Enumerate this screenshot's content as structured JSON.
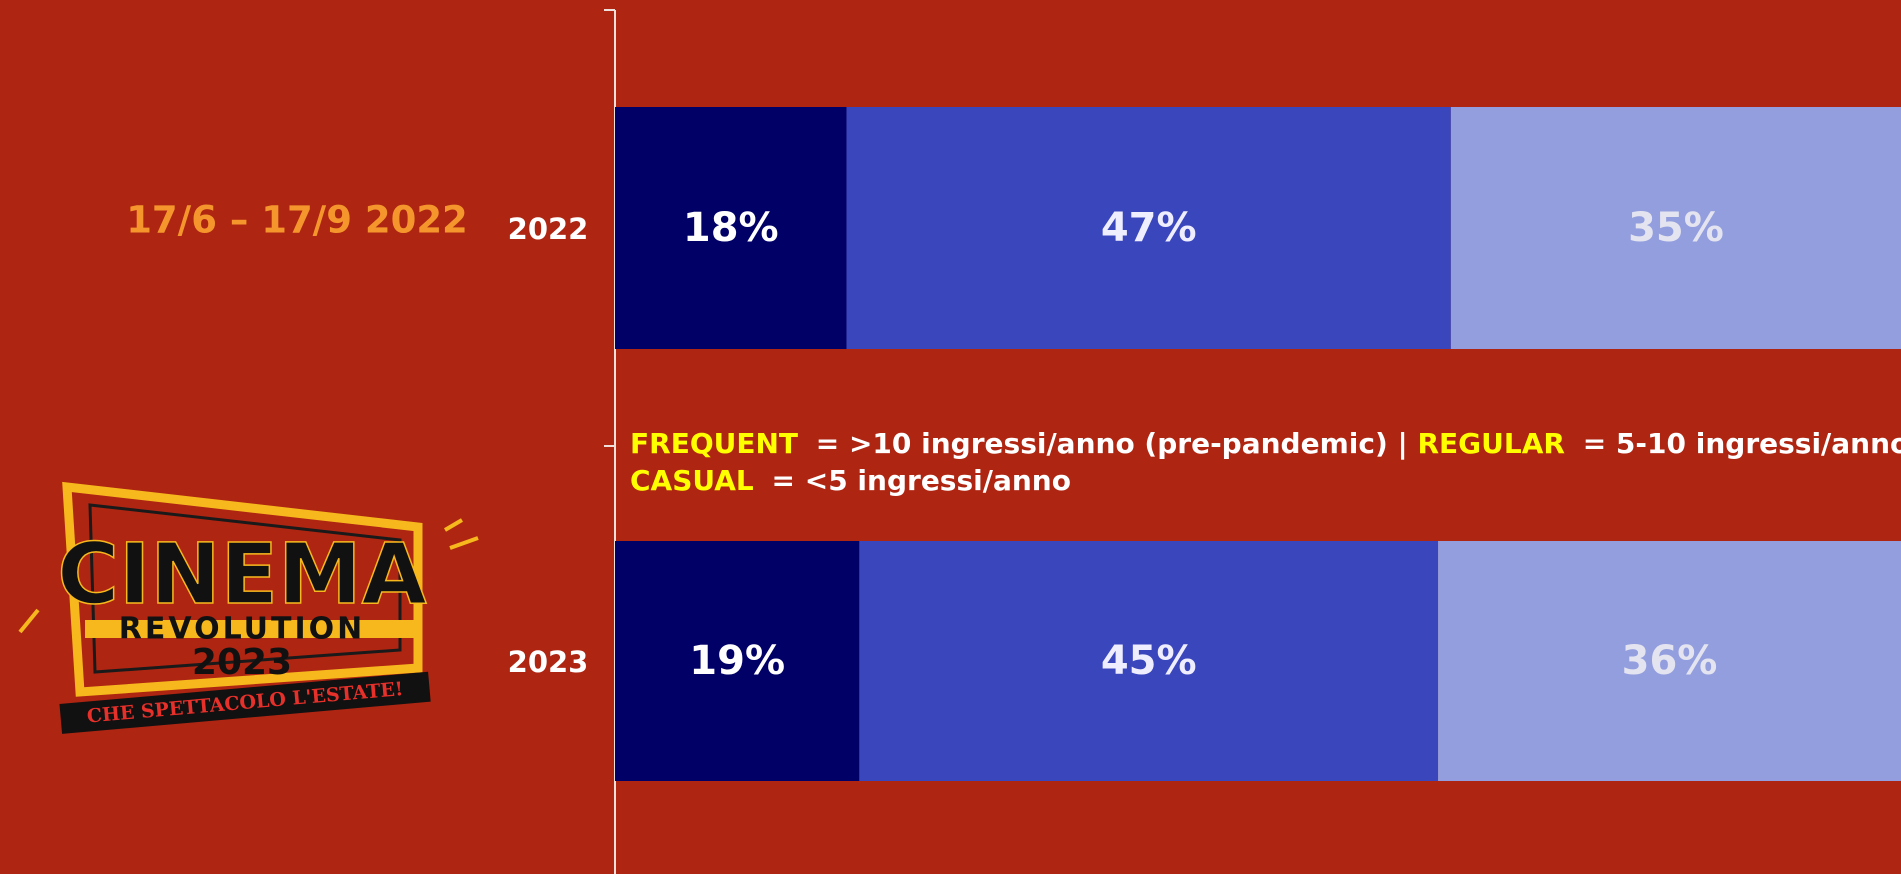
{
  "chart_data": {
    "type": "stacked-bar-horizontal",
    "subtitle": "17/6 – 17/9 2022",
    "categories": [
      "2022",
      "2023"
    ],
    "series": [
      {
        "name": "FREQUENT",
        "color": "#000066",
        "label_color": "#ffffff",
        "values": [
          18,
          19
        ],
        "value_labels": [
          "18%",
          "19%"
        ]
      },
      {
        "name": "REGULAR",
        "color": "#3a46bb",
        "label_color": "#eeeeff",
        "values": [
          47,
          45
        ],
        "value_labels": [
          "47%",
          "45%"
        ]
      },
      {
        "name": "CASUAL",
        "color": "#939ede",
        "label_color": "#e4e4f0",
        "values": [
          35,
          36
        ],
        "value_labels": [
          "35%",
          "36%"
        ]
      }
    ],
    "annotations": [
      "= >10 ingressi/anno (pre-pandemic)  |",
      "= 5-10 ingressi/anno  |",
      "= <5 ingressi/anno"
    ],
    "xlim": [
      0,
      100
    ]
  },
  "logo": {
    "line1": "CINEMA",
    "line2": "REVOLUTION",
    "line3": "2023",
    "tagline": "CHE SPETTACOLO L'ESTATE!"
  }
}
